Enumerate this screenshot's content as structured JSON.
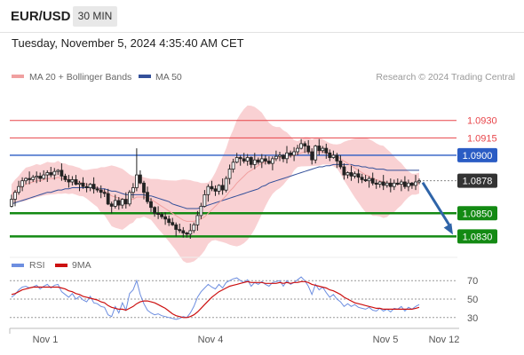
{
  "header": {
    "symbol": "EUR/USD",
    "timeframe": "30 MIN",
    "timestamp": "Tuesday, November 5, 2024 4:35:40 AM CET"
  },
  "colors": {
    "resistance": "#e8454a",
    "pivot": "#2a5cc4",
    "support": "#138a13",
    "bands": "#f7c2c4",
    "ma20": "#f0a0a0",
    "ma50": "#34509a",
    "arrow": "#2f64a8",
    "rsi": "#6d8ee0",
    "ma9": "#cc1010",
    "current_badge": "#333333",
    "candle_up": "#ffffff",
    "candle_down": "#222222"
  },
  "chart_data": [
    {
      "type": "candlestick",
      "title": "",
      "legend": [
        {
          "label": "MA 20 + Bollinger Bands",
          "color": "#f0a0a0"
        },
        {
          "label": "MA 50",
          "color": "#34509a"
        }
      ],
      "legend_placement": "top-left",
      "credit": "Research © 2024 Trading Central",
      "ylim": [
        1.0815,
        1.0965
      ],
      "x_ticks": [
        "Nov 1",
        "Nov 4",
        "Nov 5",
        "Nov 12"
      ],
      "levels": [
        {
          "label": "1.0930",
          "value": 1.093,
          "kind": "resistance"
        },
        {
          "label": "1.0915",
          "value": 1.0915,
          "kind": "resistance"
        },
        {
          "label": "1.0900",
          "value": 1.09,
          "kind": "pivot"
        },
        {
          "label": "1.0878",
          "value": 1.0878,
          "kind": "current"
        },
        {
          "label": "1.0850",
          "value": 1.085,
          "kind": "support"
        },
        {
          "label": "1.0830",
          "value": 1.083,
          "kind": "support"
        }
      ],
      "forecast": {
        "from": 1.0878,
        "to": 1.083,
        "direction": "down"
      },
      "close": [
        1.0862,
        1.0868,
        1.0873,
        1.0878,
        1.088,
        1.0879,
        1.0881,
        1.0882,
        1.088,
        1.0883,
        1.0885,
        1.0883,
        1.0886,
        1.0887,
        1.0882,
        1.0879,
        1.0877,
        1.0879,
        1.0875,
        1.0876,
        1.0873,
        1.0872,
        1.0875,
        1.0871,
        1.087,
        1.0868,
        1.0867,
        1.0858,
        1.0856,
        1.0861,
        1.0857,
        1.0862,
        1.0858,
        1.0868,
        1.0872,
        1.0883,
        1.0876,
        1.0868,
        1.086,
        1.0855,
        1.085,
        1.0849,
        1.0847,
        1.0845,
        1.0842,
        1.084,
        1.0836,
        1.0835,
        1.0833,
        1.0832,
        1.0835,
        1.084,
        1.0848,
        1.0856,
        1.0866,
        1.0873,
        1.0871,
        1.0869,
        1.0874,
        1.087,
        1.088,
        1.0888,
        1.0894,
        1.0898,
        1.0897,
        1.0895,
        1.0898,
        1.0892,
        1.0896,
        1.0894,
        1.0897,
        1.0895,
        1.0893,
        1.0897,
        1.0899,
        1.09,
        1.0897,
        1.0902,
        1.09,
        1.0903,
        1.0906,
        1.091,
        1.0908,
        1.0903,
        1.0896,
        1.0908,
        1.0904,
        1.0906,
        1.0902,
        1.0898,
        1.09,
        1.0895,
        1.089,
        1.0883,
        1.0885,
        1.0882,
        1.0884,
        1.0881,
        1.0879,
        1.0878,
        1.088,
        1.0876,
        1.0875,
        1.0877,
        1.0874,
        1.0876,
        1.0873,
        1.0876,
        1.0875,
        1.0877,
        1.0873,
        1.0876,
        1.0874,
        1.0877,
        1.0878
      ],
      "ma20": [
        1.0866,
        1.0869,
        1.0871,
        1.0873,
        1.0875,
        1.0876,
        1.0877,
        1.0878,
        1.0878,
        1.0879,
        1.088,
        1.088,
        1.088,
        1.0881,
        1.088,
        1.088,
        1.0879,
        1.0879,
        1.0878,
        1.0877,
        1.0876,
        1.0875,
        1.0874,
        1.0873,
        1.0872,
        1.087,
        1.0869,
        1.0867,
        1.0865,
        1.0864,
        1.0863,
        1.0862,
        1.0862,
        1.0862,
        1.0862,
        1.0864,
        1.0864,
        1.0864,
        1.0863,
        1.0862,
        1.086,
        1.0858,
        1.0856,
        1.0854,
        1.0852,
        1.085,
        1.0848,
        1.0846,
        1.0844,
        1.0843,
        1.0843,
        1.0843,
        1.0844,
        1.0845,
        1.0847,
        1.085,
        1.0853,
        1.0856,
        1.0859,
        1.0862,
        1.0865,
        1.0869,
        1.0872,
        1.0876,
        1.0879,
        1.0882,
        1.0885,
        1.0887,
        1.0889,
        1.0891,
        1.0893,
        1.0894,
        1.0895,
        1.0896,
        1.0897,
        1.0898,
        1.0898,
        1.0899,
        1.0899,
        1.09,
        1.0901,
        1.0902,
        1.0903,
        1.0903,
        1.0902,
        1.0903,
        1.0903,
        1.0903,
        1.0902,
        1.0901,
        1.09,
        1.0899,
        1.0897,
        1.0895,
        1.0893,
        1.0891,
        1.0889,
        1.0887,
        1.0885,
        1.0883,
        1.0882,
        1.088,
        1.0879,
        1.0878,
        1.0877,
        1.0876,
        1.0876,
        1.0875,
        1.0875,
        1.0875,
        1.0875,
        1.0875,
        1.0875,
        1.0875,
        1.0876
      ],
      "ma50": [
        1.0858,
        1.0859,
        1.086,
        1.0861,
        1.0862,
        1.0863,
        1.0864,
        1.0865,
        1.0866,
        1.0867,
        1.0868,
        1.0868,
        1.0869,
        1.087,
        1.087,
        1.0871,
        1.0871,
        1.0872,
        1.0872,
        1.0872,
        1.0872,
        1.0872,
        1.0872,
        1.0872,
        1.0872,
        1.0871,
        1.0871,
        1.087,
        1.0869,
        1.0869,
        1.0868,
        1.0867,
        1.0866,
        1.0866,
        1.0866,
        1.0866,
        1.0866,
        1.0866,
        1.0865,
        1.0865,
        1.0864,
        1.0863,
        1.0862,
        1.0861,
        1.086,
        1.0858,
        1.0857,
        1.0856,
        1.0855,
        1.0854,
        1.0854,
        1.0854,
        1.0854,
        1.0855,
        1.0856,
        1.0857,
        1.0858,
        1.0859,
        1.086,
        1.0861,
        1.0862,
        1.0863,
        1.0864,
        1.0865,
        1.0866,
        1.0867,
        1.0868,
        1.0869,
        1.087,
        1.0871,
        1.0873,
        1.0874,
        1.0876,
        1.0877,
        1.0878,
        1.0879,
        1.088,
        1.0881,
        1.0882,
        1.0883,
        1.0884,
        1.0885,
        1.0886,
        1.0887,
        1.0888,
        1.0889,
        1.089,
        1.089,
        1.0891,
        1.0891,
        1.0892,
        1.0892,
        1.0892,
        1.0892,
        1.0892,
        1.0892,
        1.0891,
        1.0891,
        1.089,
        1.089,
        1.0889,
        1.0889,
        1.0888,
        1.0888,
        1.0888,
        1.0887,
        1.0887,
        1.0887,
        1.0887,
        1.0887,
        1.0887,
        1.0887,
        1.0887,
        1.0887,
        1.0887
      ]
    },
    {
      "type": "line",
      "title": "",
      "legend": [
        {
          "label": "RSI",
          "color": "#6d8ee0"
        },
        {
          "label": "9MA",
          "color": "#cc1010"
        }
      ],
      "legend_placement": "top-left",
      "ylim": [
        24,
        76
      ],
      "y_ticks": [
        70,
        50,
        30
      ],
      "rsi": [
        52,
        55,
        60,
        63,
        64,
        62,
        63,
        65,
        61,
        64,
        66,
        62,
        65,
        66,
        58,
        55,
        52,
        56,
        50,
        53,
        49,
        47,
        53,
        46,
        45,
        42,
        41,
        33,
        31,
        42,
        35,
        46,
        38,
        56,
        60,
        70,
        55,
        45,
        38,
        35,
        33,
        34,
        32,
        31,
        30,
        29,
        28,
        29,
        31,
        30,
        35,
        42,
        52,
        58,
        62,
        66,
        63,
        61,
        66,
        62,
        68,
        70,
        72,
        73,
        70,
        68,
        71,
        64,
        68,
        66,
        69,
        66,
        64,
        68,
        69,
        70,
        64,
        70,
        66,
        68,
        71,
        74,
        70,
        64,
        55,
        66,
        60,
        63,
        57,
        52,
        55,
        50,
        47,
        42,
        45,
        42,
        44,
        41,
        40,
        39,
        41,
        38,
        37,
        40,
        37,
        39,
        36,
        40,
        39,
        42,
        37,
        41,
        39,
        42,
        44
      ],
      "ma9": [
        55,
        56,
        58,
        60,
        61,
        62,
        63,
        63,
        63,
        63,
        63,
        63,
        63,
        63,
        62,
        61,
        59,
        58,
        56,
        55,
        53,
        52,
        51,
        50,
        49,
        47,
        46,
        43,
        41,
        40,
        39,
        39,
        38,
        40,
        42,
        45,
        47,
        48,
        48,
        47,
        46,
        44,
        42,
        40,
        37,
        34,
        32,
        31,
        30,
        30,
        31,
        33,
        36,
        40,
        44,
        48,
        52,
        55,
        58,
        60,
        62,
        64,
        65,
        66,
        67,
        68,
        69,
        68,
        68,
        68,
        68,
        67,
        67,
        67,
        67,
        68,
        67,
        68,
        67,
        68,
        68,
        69,
        69,
        68,
        66,
        65,
        64,
        63,
        62,
        60,
        59,
        57,
        55,
        52,
        50,
        48,
        46,
        45,
        44,
        43,
        42,
        41,
        40,
        40,
        39,
        39,
        39,
        39,
        39,
        39,
        39,
        39,
        39,
        40,
        41
      ]
    }
  ]
}
